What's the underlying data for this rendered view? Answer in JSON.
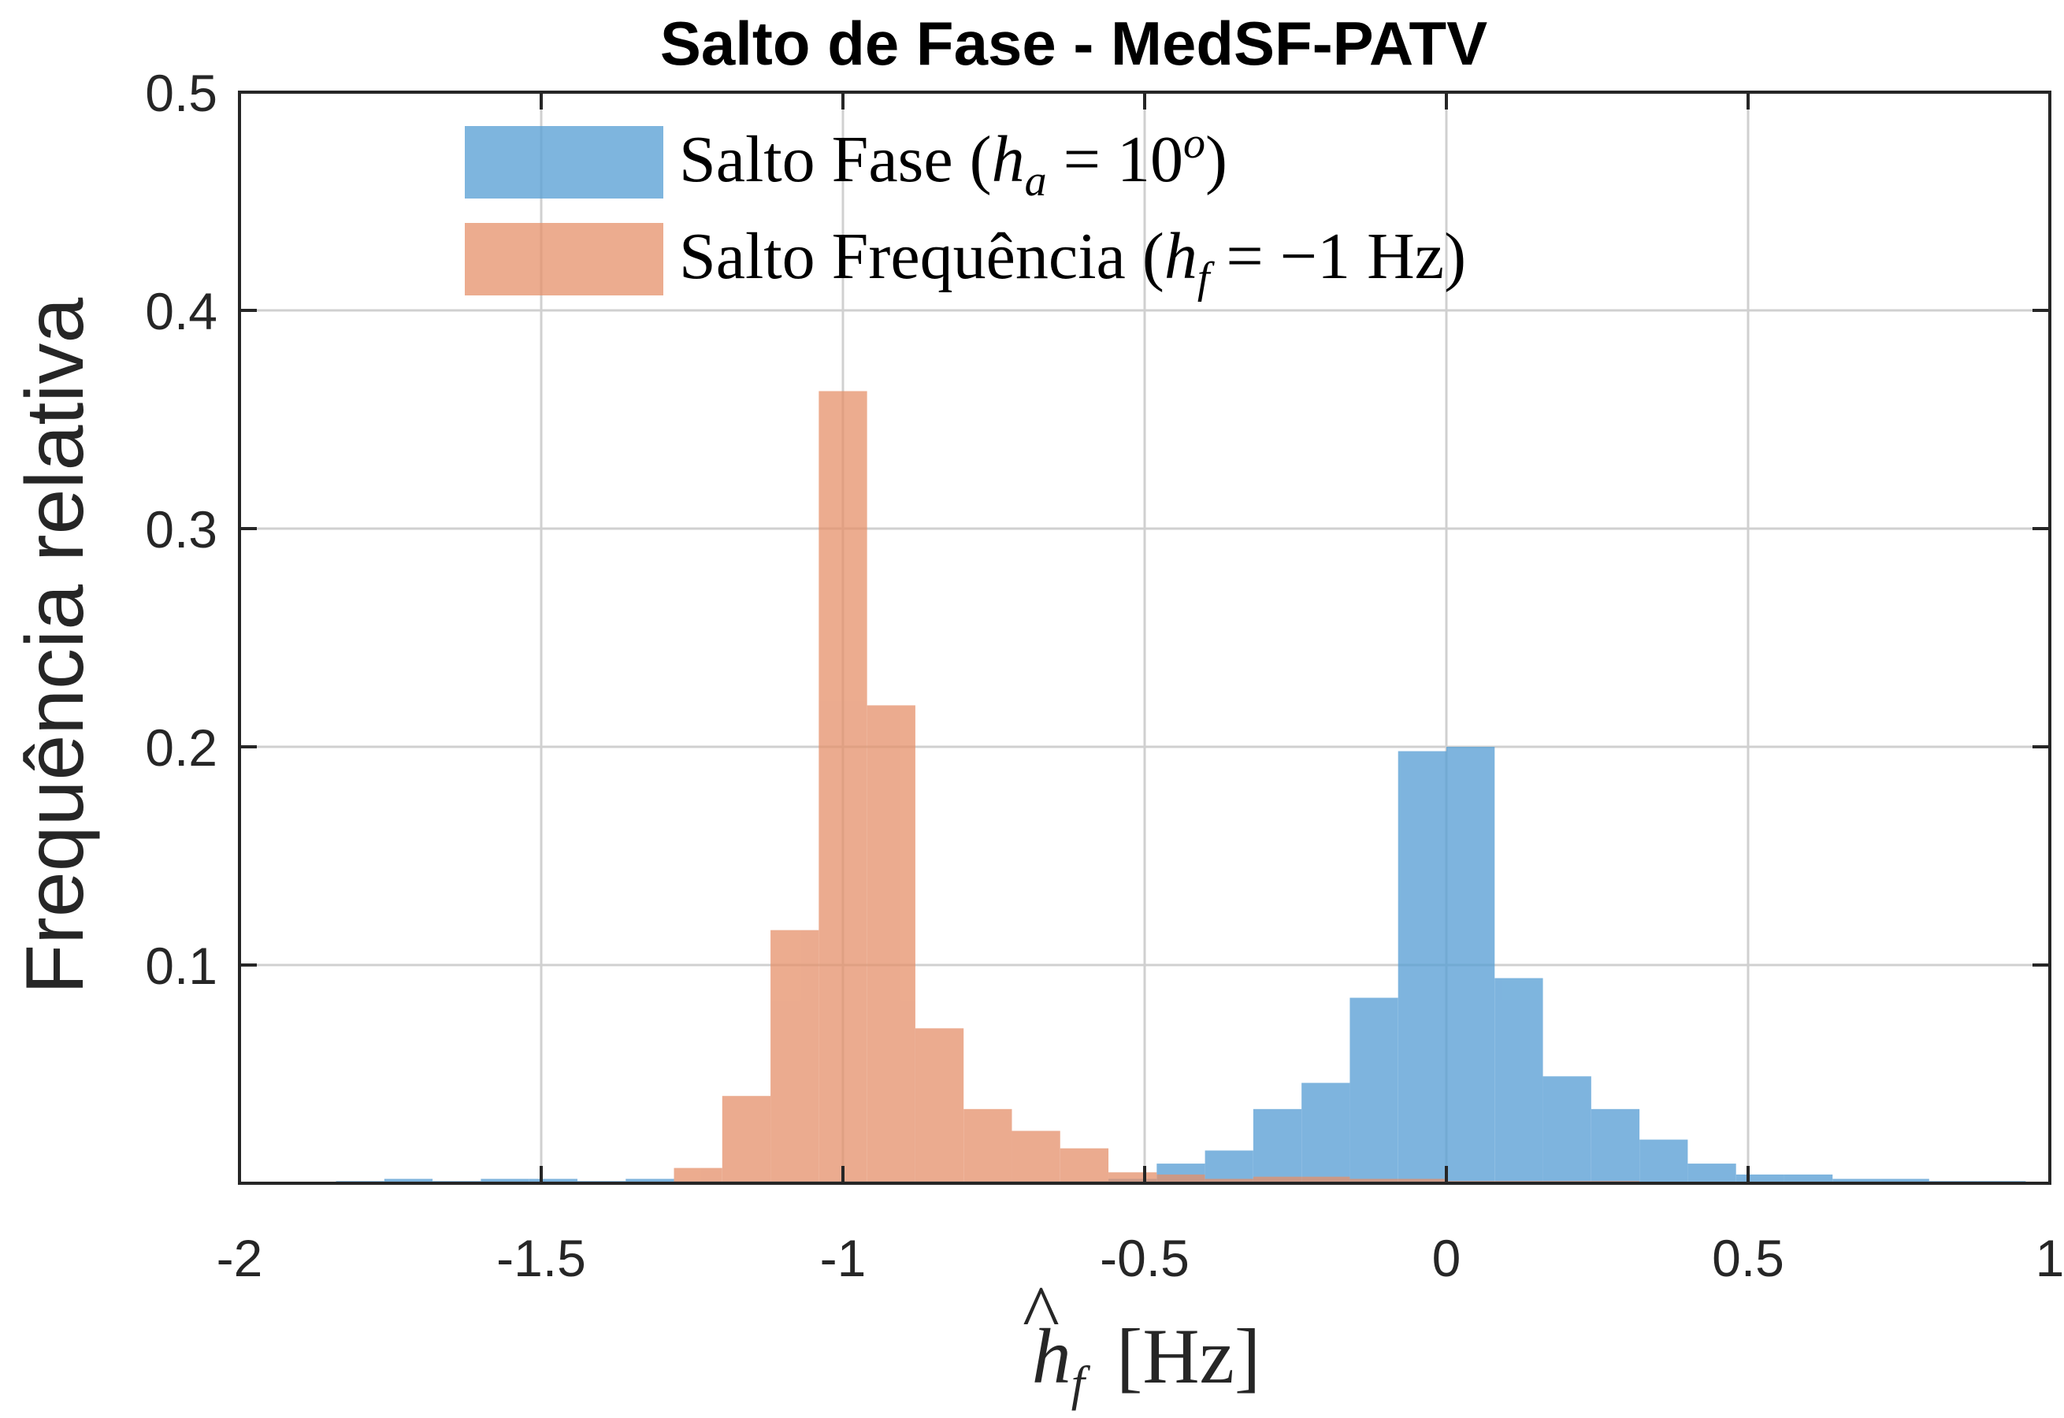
{
  "chart_data": {
    "type": "bar",
    "title": "Salto de Fase - MedSF-PATV",
    "ylabel": "Frequência relativa",
    "xlabel": {
      "hat": "^",
      "main": "h",
      "sub": "f",
      "unit": "[Hz]"
    },
    "xlim": [
      -2,
      1
    ],
    "ylim": [
      0,
      0.5
    ],
    "xticks": [
      "-2",
      "-1.5",
      "-1",
      "-0.5",
      "0",
      "0.5",
      "1"
    ],
    "xtick_values": [
      -2,
      -1.5,
      -1,
      -0.5,
      0,
      0.5,
      1
    ],
    "yticks": [
      "0.1",
      "0.2",
      "0.3",
      "0.4",
      "0.5"
    ],
    "ytick_values": [
      0.1,
      0.2,
      0.3,
      0.4,
      0.5
    ],
    "grid": true,
    "legend_position": "top-left",
    "bin_width": 0.08,
    "series": [
      {
        "name": "Salto Fase",
        "legend": {
          "prefix": "Salto Fase (",
          "var": "h",
          "sub": "a",
          "eq": " = 10",
          "sup": "o",
          "suffix": ")"
        },
        "color": "#5aa0d5",
        "bin_starts": [
          -1.84,
          -1.76,
          -1.68,
          -1.6,
          -1.52,
          -1.44,
          -1.36,
          -1.28,
          -1.2,
          -1.12,
          -1.04,
          -0.96,
          -0.88,
          -0.8,
          -0.72,
          -0.64,
          -0.56,
          -0.48,
          -0.4,
          -0.32,
          -0.24,
          -0.16,
          -0.08,
          0.0,
          0.08,
          0.16,
          0.24,
          0.32,
          0.4,
          0.48,
          0.56,
          0.64,
          0.72,
          0.8,
          0.88
        ],
        "values": [
          0.001,
          0.002,
          0.001,
          0.002,
          0.002,
          0.001,
          0.002,
          0.001,
          0.001,
          0.001,
          0.001,
          0.001,
          0.001,
          0.001,
          0.001,
          0.001,
          0.002,
          0.009,
          0.015,
          0.034,
          0.046,
          0.085,
          0.198,
          0.2,
          0.094,
          0.049,
          0.034,
          0.02,
          0.009,
          0.004,
          0.004,
          0.002,
          0.002,
          0.001,
          0.001
        ]
      },
      {
        "name": "Salto Frequência",
        "legend": {
          "prefix": "Salto Frequência (",
          "var": "h",
          "sub": "f",
          "eq": " = −1 Hz",
          "sup": "",
          "suffix": ")"
        },
        "color": "#e5906a",
        "bin_starts": [
          -1.28,
          -1.2,
          -1.12,
          -1.04,
          -0.96,
          -0.88,
          -0.8,
          -0.72,
          -0.64,
          -0.56,
          -0.48,
          -0.4,
          -0.32,
          -0.24,
          -0.16,
          -0.08,
          0.0,
          0.08,
          0.16,
          0.24
        ],
        "values": [
          0.007,
          0.04,
          0.116,
          0.363,
          0.219,
          0.071,
          0.034,
          0.024,
          0.016,
          0.005,
          0.004,
          0.002,
          0.003,
          0.003,
          0.002,
          0.002,
          0.001,
          0.001,
          0.001,
          0.001
        ]
      }
    ]
  }
}
